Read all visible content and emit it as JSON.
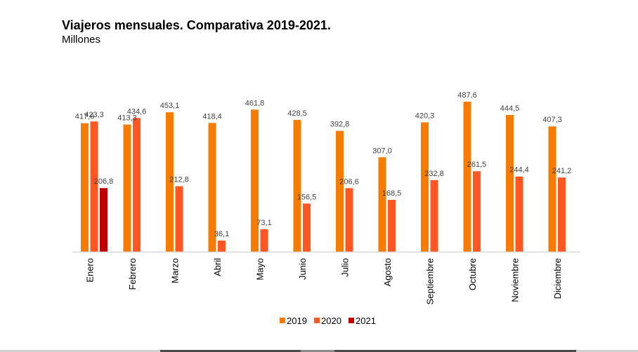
{
  "header": {
    "title": "Viajeros mensuales. Comparativa 2019-2021.",
    "subtitle": "Millones"
  },
  "chart_data": {
    "type": "bar",
    "title": "Viajeros mensuales. Comparativa 2019-2021.",
    "subtitle": "Millones",
    "xlabel": "",
    "ylabel": "Millones",
    "ylim": [
      0,
      500
    ],
    "grid": false,
    "legend_position": "bottom",
    "categories": [
      "Enero",
      "Febrero",
      "Marzo",
      "Abril",
      "Mayo",
      "Junio",
      "Julio",
      "Agosto",
      "Septiembre",
      "Octubre",
      "Noviembre",
      "Diciembre"
    ],
    "series": [
      {
        "name": "2019",
        "color": "#f57c00",
        "values": [
          417.6,
          413.3,
          453.1,
          418.4,
          461.8,
          428.5,
          392.8,
          307.0,
          420.3,
          487.6,
          444.5,
          407.3
        ],
        "labels": [
          "417,6",
          "413,3",
          "453,1",
          "418,4",
          "461,8",
          "428,5",
          "392,8",
          "307,0",
          "420,3",
          "487,6",
          "444,5",
          "407,3"
        ]
      },
      {
        "name": "2020",
        "color": "#ff5722",
        "values": [
          423.3,
          434.6,
          212.8,
          36.1,
          73.1,
          156.5,
          206.6,
          168.5,
          232.8,
          261.5,
          244.4,
          241.2
        ],
        "labels": [
          "423,3",
          "434,6",
          "212,8",
          "36,1",
          "73,1",
          "156,5",
          "206,6",
          "168,5",
          "232,8",
          "261,5",
          "244,4",
          "241,2"
        ]
      },
      {
        "name": "2021",
        "color": "#c00000",
        "values": [
          206.8,
          null,
          null,
          null,
          null,
          null,
          null,
          null,
          null,
          null,
          null,
          null
        ],
        "labels": [
          "206,8",
          "",
          "",
          "",
          "",
          "",
          "",
          "",
          "",
          "",
          "",
          ""
        ]
      }
    ]
  }
}
